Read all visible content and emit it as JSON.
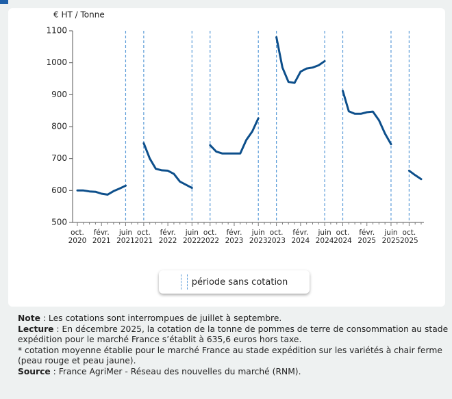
{
  "chart_data": {
    "type": "line",
    "y_label": "€ HT / Tonne",
    "categories": [
      "oct. 2020",
      null,
      null,
      null,
      "févr. 2021",
      null,
      null,
      null,
      "juin 2021",
      null,
      null,
      "oct. 2021",
      null,
      null,
      null,
      "févr. 2022",
      null,
      null,
      null,
      "juin 2022",
      null,
      null,
      "oct. 2022",
      null,
      null,
      null,
      "févr. 2023",
      null,
      null,
      null,
      "juin 2023",
      null,
      null,
      "oct. 2023",
      null,
      null,
      null,
      "févr. 2024",
      null,
      null,
      null,
      "juin 2024",
      null,
      null,
      "oct. 2024",
      null,
      null,
      null,
      "févr. 2025",
      null,
      null,
      null,
      "juin 2025",
      null,
      null,
      "oct. 2025",
      null,
      null
    ],
    "series": [
      {
        "name": null,
        "color": "#0d4f8b",
        "values": [
          600,
          600,
          597,
          596,
          590,
          587,
          598,
          606,
          615,
          null,
          null,
          748,
          700,
          668,
          663,
          662,
          652,
          628,
          618,
          608,
          null,
          null,
          742,
          722,
          716,
          716,
          716,
          716,
          758,
          785,
          826,
          null,
          null,
          1080,
          985,
          940,
          937,
          972,
          982,
          985,
          992,
          1005,
          null,
          null,
          912,
          848,
          840,
          840,
          845,
          847,
          820,
          778,
          745,
          null,
          null,
          662,
          648,
          635.6
        ]
      }
    ],
    "ylim": [
      500,
      1100
    ],
    "yticks": [
      500,
      600,
      700,
      800,
      900,
      1000,
      1100
    ],
    "gap_legend": "période sans cotation",
    "gap_color": "#5a9bd8"
  },
  "notes": [
    {
      "label": "Note",
      "text": " : Les cotations sont interrompues de juillet à septembre."
    },
    {
      "label": "Lecture",
      "text": " : En décembre 2025, la cotation de la tonne de pommes de terre de consommation au stade expédition pour le marché France s’établit à 635,6 euros hors taxe."
    },
    {
      "text": "* cotation moyenne établie pour le marché France au stade expédition sur les variétés à chair ferme (peau rouge et peau jaune)."
    },
    {
      "label": "Source",
      "text": " : France AgriMer - Réseau des nouvelles du marché (RNM)."
    }
  ]
}
